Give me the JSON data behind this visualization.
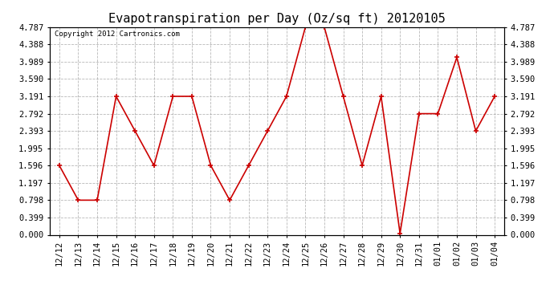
{
  "title": "Evapotranspiration per Day (Oz/sq ft) 20120105",
  "copyright_text": "Copyright 2012 Cartronics.com",
  "labels": [
    "12/12",
    "12/13",
    "12/14",
    "12/15",
    "12/16",
    "12/17",
    "12/18",
    "12/19",
    "12/20",
    "12/21",
    "12/22",
    "12/23",
    "12/24",
    "12/25",
    "12/26",
    "12/27",
    "12/28",
    "12/29",
    "12/30",
    "12/31",
    "01/01",
    "01/02",
    "01/03",
    "01/04"
  ],
  "values": [
    1.596,
    0.798,
    0.798,
    3.191,
    2.393,
    1.596,
    3.191,
    3.191,
    1.596,
    0.798,
    1.596,
    2.393,
    3.191,
    4.787,
    4.787,
    3.191,
    1.596,
    3.191,
    0.03,
    2.792,
    2.792,
    4.089,
    2.393,
    3.191
  ],
  "line_color": "#cc0000",
  "marker_color": "#cc0000",
  "background_color": "#ffffff",
  "grid_color": "#888888",
  "yticks": [
    0.0,
    0.399,
    0.798,
    1.197,
    1.596,
    1.995,
    2.393,
    2.792,
    3.191,
    3.59,
    3.989,
    4.388,
    4.787
  ],
  "ylim": [
    0.0,
    4.787
  ],
  "title_fontsize": 11,
  "tick_fontsize": 7.5,
  "copyright_fontsize": 6.5
}
